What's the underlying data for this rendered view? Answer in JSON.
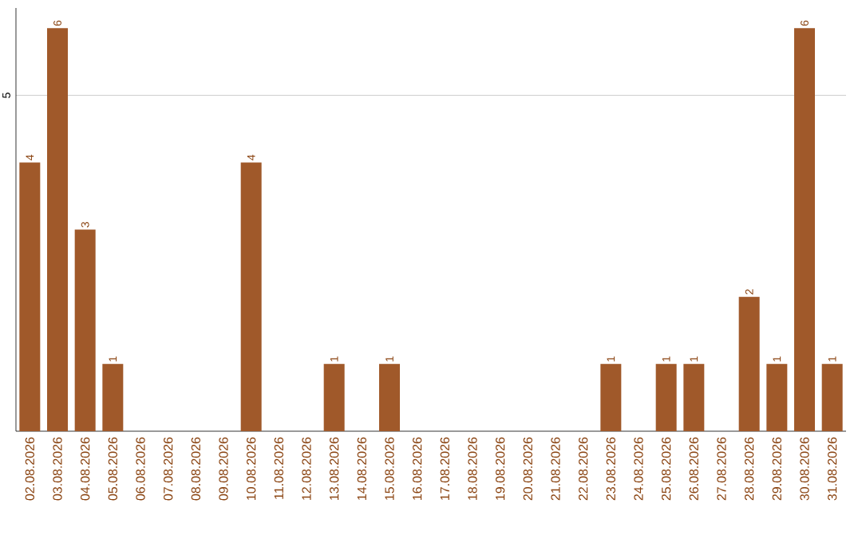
{
  "chart_data": {
    "type": "bar",
    "categories": [
      "02.08.2026",
      "03.08.2026",
      "04.08.2026",
      "05.08.2026",
      "06.08.2026",
      "07.08.2026",
      "08.08.2026",
      "09.08.2026",
      "10.08.2026",
      "11.08.2026",
      "12.08.2026",
      "13.08.2026",
      "14.08.2026",
      "15.08.2026",
      "16.08.2026",
      "17.08.2026",
      "18.08.2026",
      "19.08.2026",
      "20.08.2026",
      "21.08.2026",
      "22.08.2026",
      "23.08.2026",
      "24.08.2026",
      "25.08.2026",
      "26.08.2026",
      "27.08.2026",
      "28.08.2026",
      "29.08.2026",
      "30.08.2026",
      "31.08.2026"
    ],
    "values": [
      4,
      6,
      3,
      1,
      0,
      0,
      0,
      0,
      4,
      0,
      0,
      1,
      0,
      1,
      0,
      0,
      0,
      0,
      0,
      0,
      0,
      1,
      0,
      1,
      1,
      0,
      2,
      1,
      6,
      1
    ],
    "value_labels": [
      "4",
      "6",
      "3",
      "1",
      null,
      null,
      null,
      null,
      "4",
      null,
      null,
      "1",
      null,
      "1",
      null,
      null,
      null,
      null,
      null,
      null,
      null,
      "1",
      null,
      "1",
      "1",
      null,
      "2",
      "1",
      "6",
      "1"
    ],
    "color": "#a0592a",
    "ylim": [
      0,
      6.3
    ],
    "yticks": [
      5
    ],
    "grid": "y"
  }
}
